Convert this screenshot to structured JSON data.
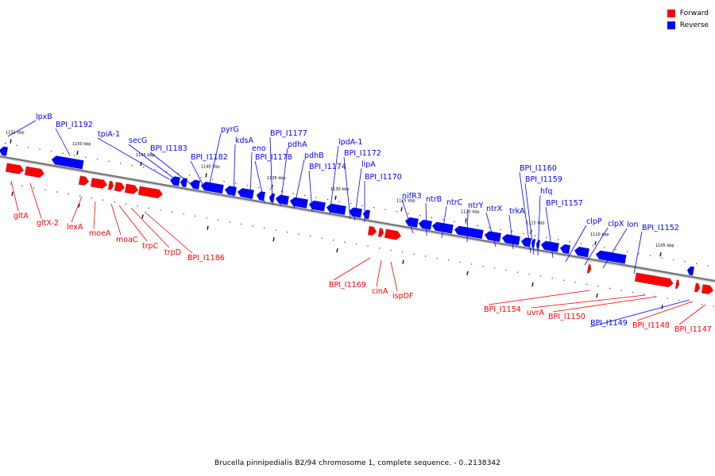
{
  "legend": [
    {
      "label": "Forward",
      "color": "#ff0000"
    },
    {
      "label": "Reverse",
      "color": "#0000ff"
    }
  ],
  "caption": "Brucella pinnipedialis B2/94 chromosome 1, complete sequence. - 0..2138342",
  "colors": {
    "forward": "#ff0000",
    "reverse": "#0000ff",
    "backbone": "#777777"
  },
  "ticks": [
    "1155 kbp",
    "1150 kbp",
    "1145 kbp",
    "1140 kbp",
    "1135 kbp",
    "1130 kbp",
    "1125 kbp",
    "1120 kbp",
    "1115 kbp",
    "1110 kbp",
    "1105 kbp"
  ],
  "reverse_labels": [
    "lpxB",
    "BPI_I1192",
    "tpiA-1",
    "secG",
    "BPI_I1183",
    "BPI_I1182",
    "pyrG",
    "kdsA",
    "eno",
    "BPI_I1178",
    "BPI_I1177",
    "pdhA",
    "pdhB",
    "BPI_I1174",
    "lpdA-1",
    "BPI_I1172",
    "lipA",
    "BPI_I1170",
    "nifR3",
    "ntrB",
    "ntrC",
    "ntrY",
    "ntrX",
    "trkA",
    "BPI_I1160",
    "BPI_I1159",
    "hfq",
    "BPI_I1157",
    "clpP",
    "clpX",
    "lon",
    "BPI_I1152",
    "BPI_I1149"
  ],
  "forward_labels": [
    "gltA",
    "gltX-2",
    "lexA",
    "moeA",
    "moaC",
    "trpC",
    "trpD",
    "BPI_I1186",
    "BPI_I1169",
    "cinA",
    "ispDF",
    "BPI_I1154",
    "uvrA",
    "BPI_I1150",
    "BPI_I1148",
    "BPI_I1147"
  ]
}
